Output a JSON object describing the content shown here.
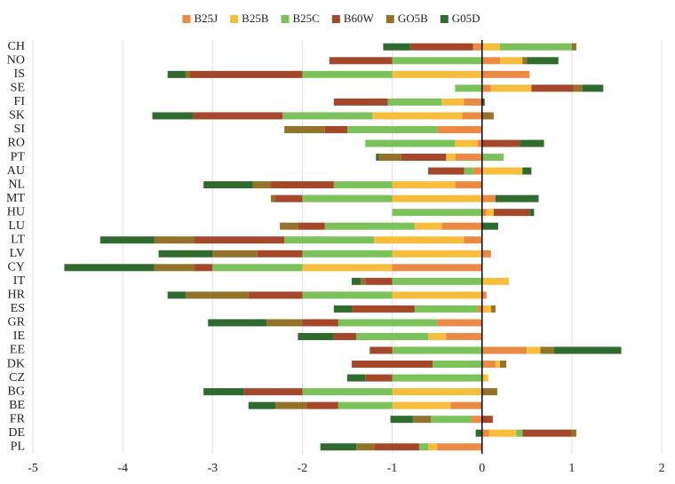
{
  "chart_data": {
    "type": "diverging-stacked-bar",
    "orientation": "horizontal",
    "categories": [
      "CH",
      "NO",
      "IS",
      "SE",
      "FI",
      "SK",
      "SI",
      "RO",
      "PT",
      "AU",
      "NL",
      "MT",
      "HU",
      "LU",
      "LT",
      "LV",
      "CY",
      "IT",
      "HR",
      "ES",
      "GR",
      "IE",
      "EE",
      "DK",
      "CZ",
      "BG",
      "BE",
      "FR",
      "DE",
      "PL"
    ],
    "series": [
      {
        "name": "B25J",
        "color": "#ea8a44",
        "values": [
          -0.1,
          0.2,
          0.53,
          0.1,
          -0.2,
          -0.22,
          -0.5,
          -0.05,
          -0.3,
          -0.1,
          -0.3,
          0.15,
          0.05,
          -0.45,
          -0.2,
          0.1,
          -1.0,
          0,
          0.05,
          -0.05,
          -0.5,
          -0.4,
          0.5,
          0.15,
          0,
          0,
          -0.35,
          -0.12,
          0.08,
          -0.5
        ]
      },
      {
        "name": "B25B",
        "color": "#f7bd3c",
        "values": [
          0.2,
          0.25,
          -1.0,
          0.45,
          -0.25,
          -1.0,
          0,
          -0.25,
          -0.1,
          0.45,
          -0.7,
          -1.0,
          0.08,
          -0.3,
          -1.0,
          -1.0,
          -1.0,
          0.3,
          -1.0,
          0.1,
          0,
          -0.2,
          0.15,
          0.05,
          0.07,
          -1.0,
          -0.65,
          0,
          0.3,
          -0.1
        ]
      },
      {
        "name": "B25C",
        "color": "#7cc25a",
        "values": [
          0.8,
          -1.0,
          -1.0,
          -0.3,
          -0.6,
          -1.0,
          -1.0,
          -1.0,
          0.24,
          -0.1,
          -0.65,
          -1.0,
          -1.0,
          -1.0,
          -1.0,
          -1.0,
          -1.0,
          -1.0,
          -1.0,
          -0.7,
          -1.1,
          -0.8,
          -1.0,
          -0.55,
          -1.0,
          -1.0,
          -0.6,
          -0.45,
          0.07,
          -0.1
        ]
      },
      {
        "name": "B60W",
        "color": "#a4472a",
        "values": [
          -0.7,
          -0.7,
          -1.25,
          0.47,
          -0.6,
          -1.0,
          -0.25,
          0.42,
          -0.5,
          -0.4,
          -0.7,
          -0.3,
          0.4,
          -0.3,
          -1.0,
          -0.5,
          -0.2,
          -0.3,
          -0.6,
          -0.7,
          -0.4,
          -0.25,
          -0.25,
          -0.9,
          -0.3,
          -0.65,
          -0.35,
          0.12,
          0.55,
          -0.5
        ]
      },
      {
        "name": "GO5B",
        "color": "#93732a",
        "values": [
          0.05,
          0.05,
          -0.05,
          0.1,
          0,
          0.13,
          -0.45,
          0,
          -0.25,
          0,
          -0.2,
          -0.05,
          0,
          -0.2,
          -0.45,
          -0.5,
          -0.45,
          -0.05,
          -0.7,
          0.05,
          -0.4,
          0,
          0.15,
          0.07,
          0,
          0.17,
          -0.35,
          -0.2,
          0.05,
          -0.2
        ]
      },
      {
        "name": "G05D",
        "color": "#2f6a2e",
        "values": [
          -0.3,
          0.35,
          -0.2,
          0.23,
          0.03,
          -0.45,
          0,
          0.27,
          -0.03,
          0.1,
          -0.55,
          0.48,
          0.05,
          0.18,
          -0.6,
          -0.6,
          -1.0,
          -0.1,
          -0.2,
          -0.2,
          -0.65,
          -0.4,
          0.75,
          0,
          -0.2,
          -0.45,
          -0.3,
          -0.25,
          -0.07,
          -0.4
        ]
      }
    ],
    "xlim": [
      -5,
      2
    ],
    "xticks": [
      -5,
      -4,
      -3,
      -2,
      -1,
      0,
      1,
      2
    ],
    "grid": true,
    "legend": "top"
  }
}
